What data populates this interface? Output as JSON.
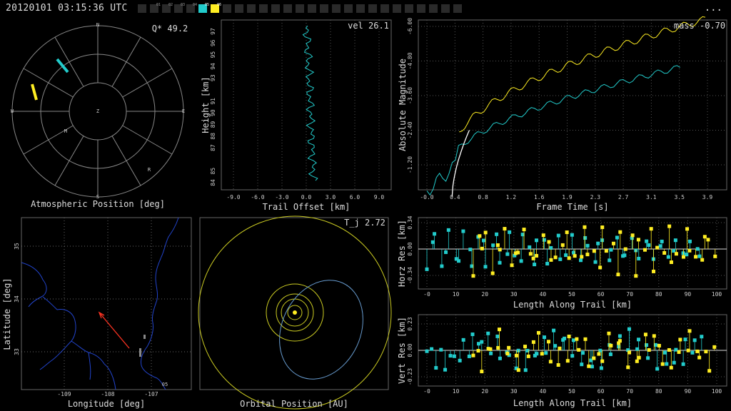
{
  "header": {
    "timestamp": "20120101 03:15:36 UTC",
    "menu_label": "...",
    "station_slots": [
      {
        "label": "",
        "active": false
      },
      {
        "label": "01",
        "active": false
      },
      {
        "label": "02",
        "active": false
      },
      {
        "label": "03",
        "active": false
      },
      {
        "label": "04",
        "active": false
      },
      {
        "label": "05",
        "active": true,
        "color": "#22cccc"
      },
      {
        "label": "06",
        "active": true,
        "color": "#ffee22"
      },
      {
        "label": "",
        "active": false
      },
      {
        "label": "",
        "active": false
      },
      {
        "label": "",
        "active": false
      },
      {
        "label": "",
        "active": false
      },
      {
        "label": "",
        "active": false
      },
      {
        "label": "",
        "active": false
      },
      {
        "label": "",
        "active": false
      },
      {
        "label": "",
        "active": false
      },
      {
        "label": "",
        "active": false
      },
      {
        "label": "",
        "active": false
      },
      {
        "label": "",
        "active": false
      },
      {
        "label": "",
        "active": false
      },
      {
        "label": "",
        "active": false
      },
      {
        "label": "",
        "active": false
      },
      {
        "label": "",
        "active": false
      },
      {
        "label": "",
        "active": false
      },
      {
        "label": "",
        "active": false
      },
      {
        "label": "",
        "active": false
      },
      {
        "label": "",
        "active": false
      },
      {
        "label": "",
        "active": false
      }
    ]
  },
  "colors": {
    "station_a": "#22cccc",
    "station_b": "#ffee22",
    "fit": "#ffffff",
    "arrow": "#ff3322",
    "grid": "#555555",
    "rivers": "#2244cc"
  },
  "panels": {
    "atmos": {
      "xlabel": "Atmospheric Position [deg]",
      "stat": "Q* 49.2",
      "dirs": {
        "n": "N",
        "s": "S",
        "e": "E",
        "w": "W",
        "z": "Z"
      },
      "markers": {
        "m": "M",
        "r": "R"
      }
    },
    "trail": {
      "xlabel": "Trail Offset [km]",
      "ylabel": "Height [km]",
      "stat": "vel 26.1",
      "xticks": [
        "-9.0",
        "-6.0",
        "-3.0",
        "0.0",
        "3.0",
        "6.0",
        "9.0"
      ],
      "yticks": [
        "84",
        "85",
        "87",
        "88",
        "89",
        "90",
        "91",
        "93",
        "94",
        "95",
        "96",
        "97"
      ]
    },
    "mag": {
      "xlabel": "Frame Time [s]",
      "ylabel": "Absolute Magnitude",
      "stat": "mass -0.70",
      "xticks": [
        "-0.0",
        "0.4",
        "0.8",
        "1.2",
        "1.6",
        "1.9",
        "2.3",
        "2.7",
        "3.1",
        "3.5",
        "3.9"
      ],
      "yticks": [
        "-1.20",
        "-2.40",
        "-3.60",
        "-4.80",
        "-6.00"
      ]
    },
    "map": {
      "xlabel": "Longitude [deg]",
      "ylabel": "Latitude [deg]",
      "xticks": [
        "-109",
        "-108",
        "-107"
      ],
      "yticks": [
        "33",
        "34",
        "35"
      ],
      "station_label": "05"
    },
    "orbit": {
      "xlabel": "Orbital Position [AU]",
      "stat": "T_j 2.72"
    },
    "horz": {
      "xlabel": "Length Along Trail [km]",
      "ylabel": "Horz Res [km]",
      "xticks": [
        "-0",
        "10",
        "20",
        "30",
        "40",
        "50",
        "60",
        "70",
        "80",
        "90",
        "100"
      ],
      "yticks": [
        "0.34",
        "0.00",
        "-0.34"
      ]
    },
    "vert": {
      "xlabel": "Length Along Trail [km]",
      "ylabel": "Vert Res [km]",
      "xticks": [
        "-0",
        "10",
        "20",
        "30",
        "40",
        "50",
        "60",
        "70",
        "80",
        "90",
        "100"
      ],
      "yticks": [
        "0.23",
        "0.00",
        "-0.23"
      ]
    }
  }
}
